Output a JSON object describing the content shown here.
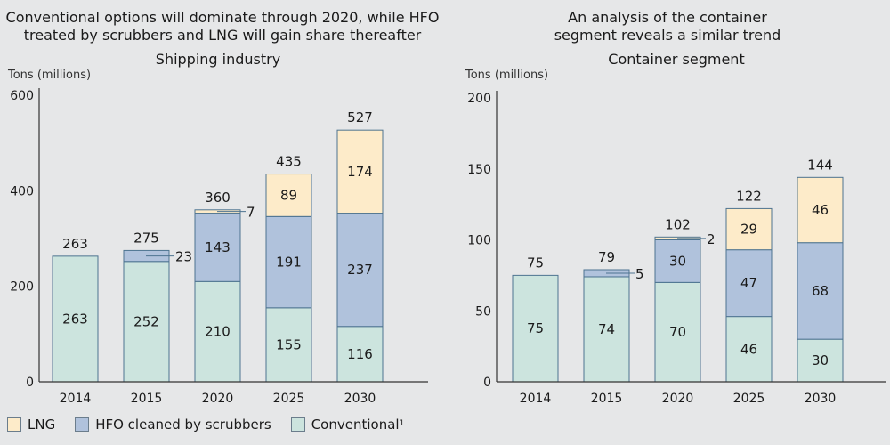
{
  "colors": {
    "lng": "#fdebc9",
    "hfo": "#b0c2dc",
    "conventional": "#cce4de",
    "bar_stroke": "#4d7390",
    "axis": "#333333",
    "background": "#e6e7e8"
  },
  "legend": [
    {
      "key": "lng",
      "label": "LNG"
    },
    {
      "key": "hfo",
      "label": "HFO cleaned by scrubbers"
    },
    {
      "key": "conventional",
      "label": "Conventional",
      "footnote": "1"
    }
  ],
  "chart_data": [
    {
      "type": "bar",
      "stacked": true,
      "headline": [
        "Conventional options will dominate through 2020, while HFO",
        "treated by scrubbers and LNG will gain share thereafter"
      ],
      "title": "Shipping industry",
      "ylabel": "Tons (millions)",
      "xlabel": "",
      "ylim": [
        0,
        600
      ],
      "yticks": [
        0,
        200,
        400,
        600
      ],
      "categories": [
        "2014",
        "2015",
        "2020",
        "2025",
        "2030"
      ],
      "totals": [
        263,
        275,
        360,
        435,
        527
      ],
      "series": [
        {
          "name": "Conventional",
          "key": "conventional",
          "values": [
            263,
            252,
            210,
            155,
            116
          ]
        },
        {
          "name": "HFO cleaned by scrubbers",
          "key": "hfo",
          "values": [
            0,
            23,
            143,
            191,
            237
          ]
        },
        {
          "name": "LNG",
          "key": "lng",
          "values": [
            0,
            0,
            7,
            89,
            174
          ]
        }
      ],
      "callouts": [
        {
          "category": "2015",
          "series": "hfo",
          "label": "23"
        },
        {
          "category": "2020",
          "series": "lng",
          "label": "7"
        }
      ],
      "legend": "bottom-left",
      "grid": false
    },
    {
      "type": "bar",
      "stacked": true,
      "headline": [
        "An analysis of the container",
        "segment reveals a similar trend"
      ],
      "title": "Container segment",
      "ylabel": "Tons (millions)",
      "xlabel": "",
      "ylim": [
        0,
        200
      ],
      "yticks": [
        0,
        50,
        100,
        150,
        200
      ],
      "categories": [
        "2014",
        "2015",
        "2020",
        "2025",
        "2030"
      ],
      "totals": [
        75,
        79,
        102,
        122,
        144
      ],
      "series": [
        {
          "name": "Conventional",
          "key": "conventional",
          "values": [
            75,
            74,
            70,
            46,
            30
          ]
        },
        {
          "name": "HFO cleaned by scrubbers",
          "key": "hfo",
          "values": [
            0,
            5,
            30,
            47,
            68
          ]
        },
        {
          "name": "LNG",
          "key": "lng",
          "values": [
            0,
            0,
            2,
            29,
            46
          ]
        }
      ],
      "callouts": [
        {
          "category": "2015",
          "series": "hfo",
          "label": "5"
        },
        {
          "category": "2020",
          "series": "lng",
          "label": "2"
        }
      ],
      "legend": "bottom-left",
      "grid": false
    }
  ]
}
